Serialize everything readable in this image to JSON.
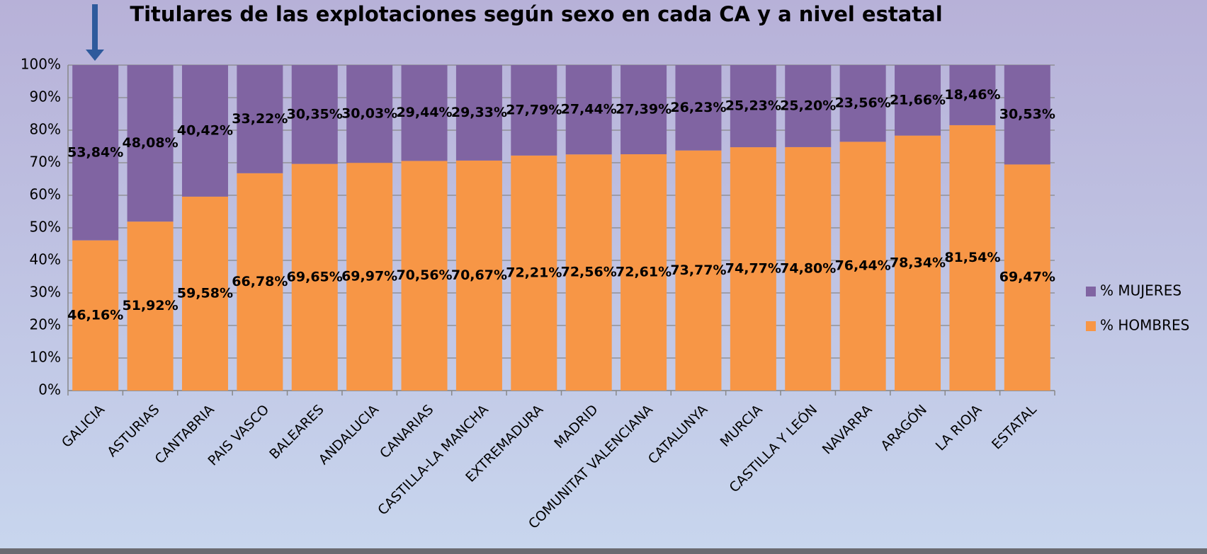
{
  "chart_data": {
    "type": "stacked_bar",
    "title": "Titulares de las explotaciones según sexo en cada CA y a nivel estatal",
    "categories": [
      "GALICIA",
      "ASTURIAS",
      "CANTABRIA",
      "PAIS VASCO",
      "BALEARES",
      "ANDALUCIA",
      "CANARIAS",
      "CASTILLA-LA MANCHA",
      "EXTREMADURA",
      "MADRID",
      "COMUNITAT VALENCIANA",
      "CATALUNYA",
      "MURCIA",
      "CASTILLA Y LEÓN",
      "NAVARRA",
      "ARAGÓN",
      "LA RIOJA",
      "ESTATAL"
    ],
    "series": [
      {
        "name": "% HOMBRES",
        "color": "#F79646",
        "values": [
          46.16,
          51.92,
          59.58,
          66.78,
          69.65,
          69.97,
          70.56,
          70.67,
          72.21,
          72.56,
          72.61,
          73.77,
          74.77,
          74.8,
          76.44,
          78.34,
          81.54,
          69.47
        ],
        "value_labels": [
          "46,16%",
          "51,92%",
          "59,58%",
          "66,78%",
          "69,65%",
          "69,97%",
          "70,56%",
          "70,67%",
          "72,21%",
          "72,56%",
          "72,61%",
          "73,77%",
          "74,77%",
          "74,80%",
          "76,44%",
          "78,34%",
          "81,54%",
          "69,47%"
        ]
      },
      {
        "name": "% MUJERES",
        "color": "#8064A2",
        "values": [
          53.84,
          48.08,
          40.42,
          33.22,
          30.35,
          30.03,
          29.44,
          29.33,
          27.79,
          27.44,
          27.39,
          26.23,
          25.23,
          25.2,
          23.56,
          21.66,
          18.46,
          30.53
        ],
        "value_labels": [
          "53,84%",
          "48,08%",
          "40,42%",
          "33,22%",
          "30,35%",
          "30,03%",
          "29,44%",
          "29,33%",
          "27,79%",
          "27,44%",
          "27,39%",
          "26,23%",
          "25,23%",
          "25,20%",
          "23,56%",
          "21,66%",
          "18,46%",
          "30,53%"
        ]
      }
    ],
    "ylim": [
      0,
      100
    ],
    "yticks": [
      {
        "value": 0,
        "label": "0%"
      },
      {
        "value": 10,
        "label": "10%"
      },
      {
        "value": 20,
        "label": "20%"
      },
      {
        "value": 30,
        "label": "30%"
      },
      {
        "value": 40,
        "label": "40%"
      },
      {
        "value": 50,
        "label": "50%"
      },
      {
        "value": 60,
        "label": "60%"
      },
      {
        "value": 70,
        "label": "70%"
      },
      {
        "value": 80,
        "label": "80%"
      },
      {
        "value": 90,
        "label": "90%"
      },
      {
        "value": 100,
        "label": "100%"
      }
    ],
    "grid": true,
    "legend": "right"
  }
}
